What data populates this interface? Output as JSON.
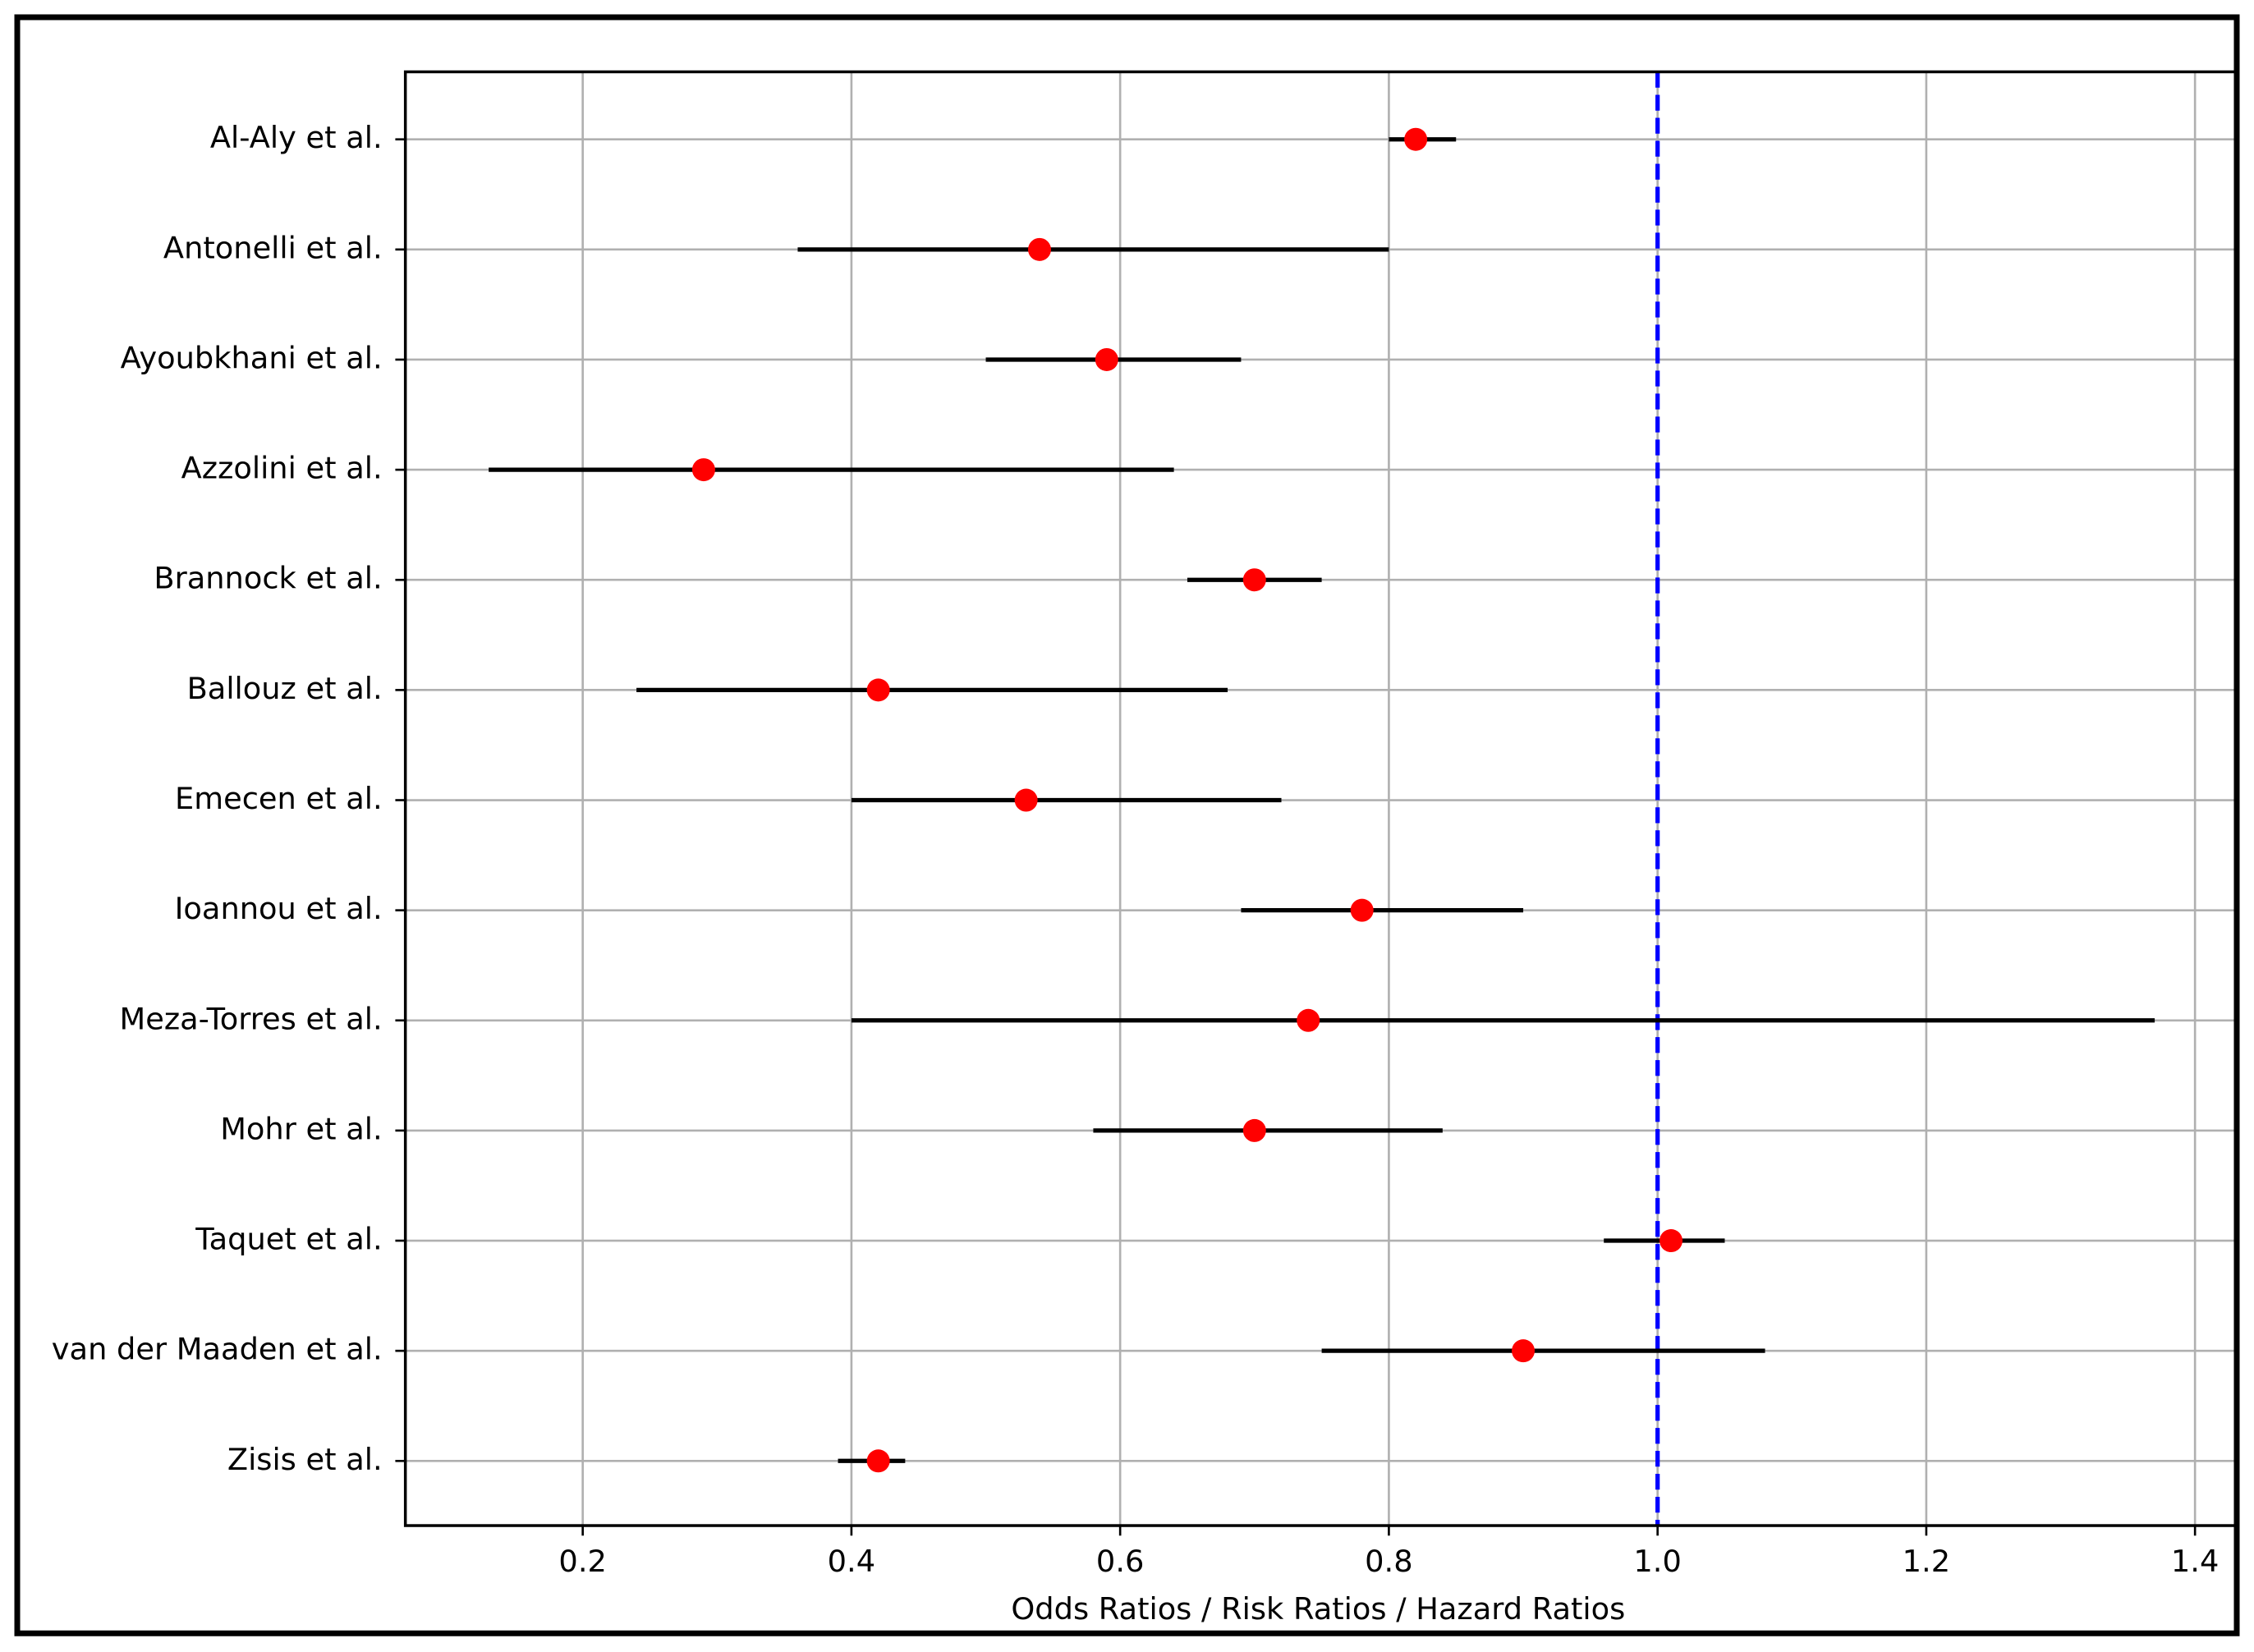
{
  "chart_data": {
    "type": "forest",
    "xlabel": "Odds Ratios / Risk Ratios / Hazard Ratios",
    "categories": [
      "Al-Aly et al.",
      "Antonelli et al.",
      "Ayoubkhani et al.",
      "Azzolini et al.",
      "Brannock et al.",
      "Ballouz et al.",
      "Emecen et al.",
      "Ioannou et al.",
      "Meza-Torres et al.",
      "Mohr et al.",
      "Taquet et al.",
      "van der Maaden et al.",
      "Zisis et al."
    ],
    "estimates": [
      0.82,
      0.54,
      0.59,
      0.29,
      0.7,
      0.42,
      0.53,
      0.78,
      0.74,
      0.7,
      1.01,
      0.9,
      0.42
    ],
    "ci_lower": [
      0.8,
      0.36,
      0.5,
      0.13,
      0.65,
      0.24,
      0.4,
      0.69,
      0.4,
      0.58,
      0.96,
      0.75,
      0.39
    ],
    "ci_upper": [
      0.85,
      0.8,
      0.69,
      0.64,
      0.75,
      0.68,
      0.72,
      0.9,
      1.37,
      0.84,
      1.05,
      1.08,
      0.44
    ],
    "point_color": "#ff0000",
    "ci_color": "#000000",
    "reference_line": 1,
    "reference_color": "#0000ff",
    "xlim": [
      0.068,
      1.43
    ],
    "xticks": [
      0.2,
      0.4,
      0.6,
      0.8,
      {
        "value": 1,
        "label": "1.0"
      },
      1.2,
      1.4
    ],
    "grid": true
  }
}
